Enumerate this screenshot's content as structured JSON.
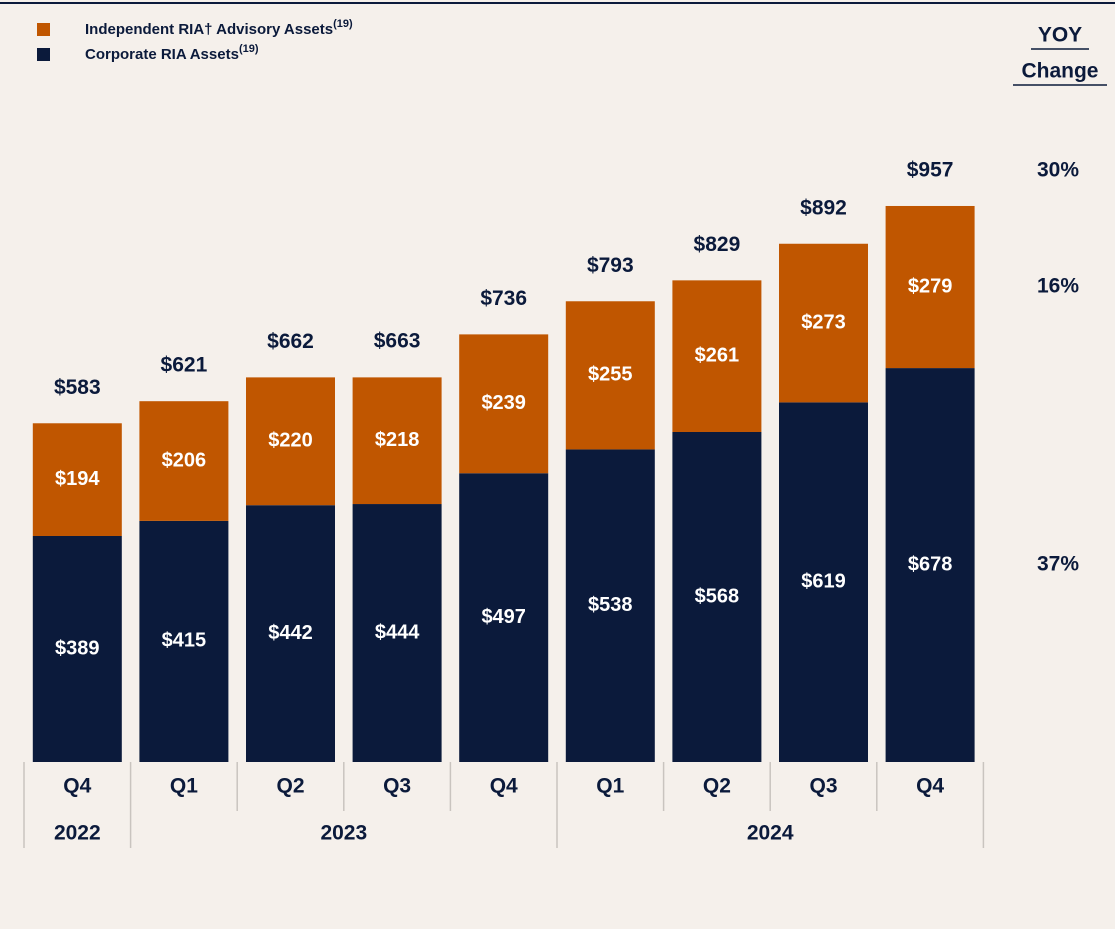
{
  "chart_data": {
    "type": "stacked_bar",
    "categories": [
      "Q4",
      "Q1",
      "Q2",
      "Q3",
      "Q4",
      "Q1",
      "Q2",
      "Q3",
      "Q4"
    ],
    "year_groups": [
      {
        "label": "2022",
        "count": 1
      },
      {
        "label": "2023",
        "count": 4
      },
      {
        "label": "2024",
        "count": 4
      }
    ],
    "series": [
      {
        "name": "Corporate RIA Assets",
        "footnote": "(19)",
        "color": "#0b1a3b",
        "values": [
          389,
          415,
          442,
          444,
          497,
          538,
          568,
          619,
          678
        ],
        "value_labels": [
          "$389",
          "$415",
          "$442",
          "$444",
          "$497",
          "$538",
          "$568",
          "$619",
          "$678"
        ],
        "yoy": 37,
        "yoy_label": "37%"
      },
      {
        "name": "Independent RIA† Advisory Assets",
        "footnote": "(19)",
        "color": "#c05600",
        "values": [
          194,
          206,
          220,
          218,
          239,
          255,
          261,
          273,
          279
        ],
        "value_labels": [
          "$194",
          "$206",
          "$220",
          "$218",
          "$239",
          "$255",
          "$261",
          "$273",
          "$279"
        ],
        "yoy": 16,
        "yoy_label": "16%"
      }
    ],
    "totals": [
      583,
      621,
      662,
      663,
      736,
      793,
      829,
      892,
      957
    ],
    "total_labels": [
      "$583",
      "$621",
      "$662",
      "$663",
      "$736",
      "$793",
      "$829",
      "$892",
      "$957"
    ],
    "yoy_title": [
      "YOY",
      "Change"
    ],
    "yoy_total": 30,
    "yoy_total_label": "30%"
  }
}
